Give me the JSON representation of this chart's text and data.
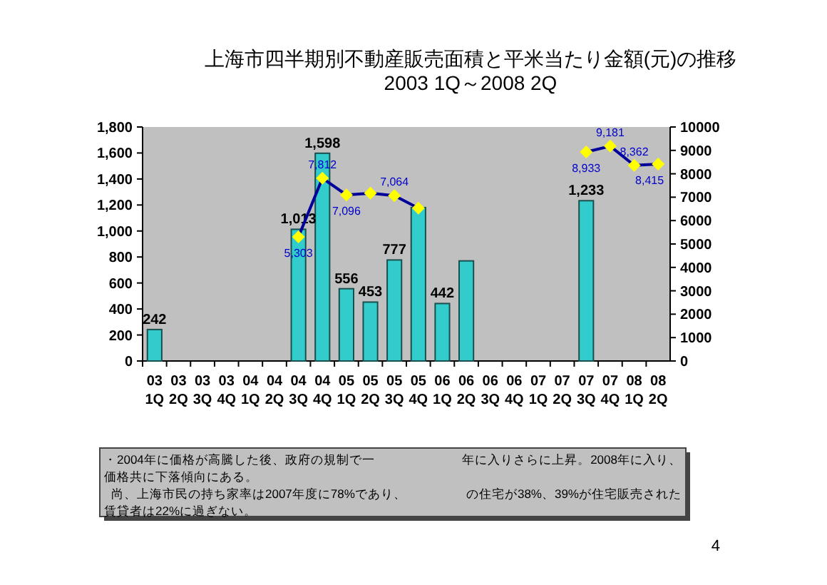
{
  "chart_data": {
    "type": "bar",
    "title": "上海市四半期別不動産販売面積と平米当たり金額(元)の推移",
    "subtitle": "2003 1Q～2008 2Q",
    "categories": [
      "03 1Q",
      "03 2Q",
      "03 3Q",
      "03 4Q",
      "04 1Q",
      "04 2Q",
      "04 3Q",
      "04 4Q",
      "05 1Q",
      "05 2Q",
      "05 3Q",
      "05 4Q",
      "06 1Q",
      "06 2Q",
      "06 3Q",
      "06 4Q",
      "07 1Q",
      "07 2Q",
      "07 3Q",
      "07 4Q",
      "08 1Q",
      "08 2Q"
    ],
    "series": [
      {
        "color": "#33cccc",
        "values": [
          242,
          null,
          null,
          null,
          null,
          null,
          1013,
          1598,
          556,
          453,
          777,
          1180,
          442,
          770,
          null,
          null,
          null,
          null,
          1233,
          null,
          null,
          null
        ],
        "value_labels": [
          "242",
          null,
          null,
          null,
          null,
          null,
          "1,013",
          "1,598",
          "556",
          "453",
          "777",
          null,
          "442",
          null,
          null,
          null,
          null,
          null,
          "1,233",
          null,
          null,
          null
        ]
      },
      {
        "type": "line",
        "axis": "y2",
        "color": "#000099",
        "values": [
          null,
          null,
          null,
          null,
          null,
          null,
          5303,
          7812,
          7096,
          7170,
          7064,
          6530,
          null,
          null,
          null,
          null,
          null,
          null,
          8933,
          9181,
          8362,
          8415
        ],
        "value_labels": [
          null,
          null,
          null,
          null,
          null,
          null,
          "5,303",
          "7,812",
          "7,096",
          null,
          "7,064",
          null,
          null,
          null,
          null,
          null,
          null,
          null,
          "8,933",
          "9,181",
          "8,362",
          "8,415"
        ]
      }
    ],
    "ylim": [
      0,
      1800
    ],
    "yticks": [
      0,
      200,
      400,
      600,
      800,
      {
        "value": 1000,
        "label": "1,000"
      },
      {
        "value": 1200,
        "label": "1,200"
      },
      {
        "value": 1400,
        "label": "1,400"
      },
      {
        "value": 1600,
        "label": "1,600"
      },
      {
        "value": 1800,
        "label": "1,800"
      }
    ],
    "y2lim": [
      0,
      10000
    ],
    "y2ticks": [
      0,
      1000,
      2000,
      3000,
      4000,
      5000,
      6000,
      7000,
      8000,
      9000,
      10000
    ],
    "marker": "diamond",
    "grid": false,
    "annotations": [
      "・2004年に価格が高騰した後、政府の規制で一",
      "年に入りさらに上昇。2008年に入り、",
      "価格共に下落傾向にある。",
      "尚、上海市民の持ち家率は2007年度に78%であり、",
      "の住宅が38%、39%が住宅販売された",
      "賃貸者は22%に過ぎない。",
      "4"
    ]
  }
}
